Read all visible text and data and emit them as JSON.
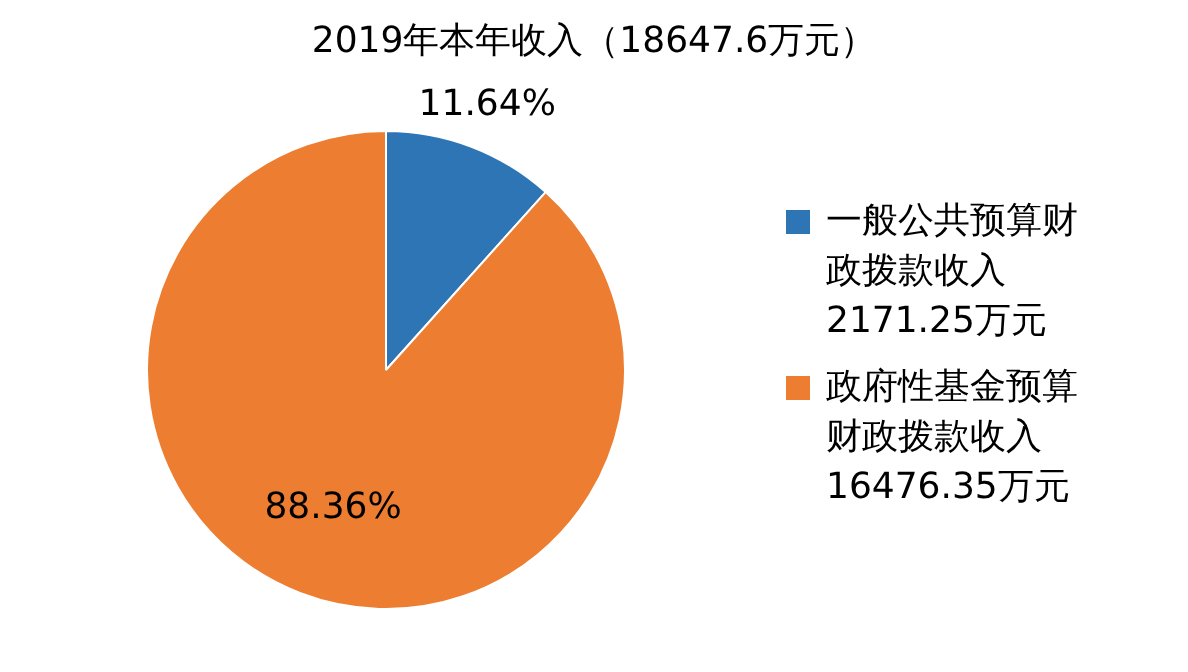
{
  "chart_data": {
    "type": "pie",
    "title": "2019年本年收入（18647.6万元）",
    "categories": [
      "一般公共预算财政拨款收入2171.25万元",
      "政府性基金预算财政拨款收入16476.35万元"
    ],
    "values": [
      11.64,
      88.36
    ],
    "colors": [
      "#2e75b6",
      "#ed7d31"
    ],
    "value_labels": [
      "11.64%",
      "88.36%"
    ],
    "legend": "right"
  }
}
